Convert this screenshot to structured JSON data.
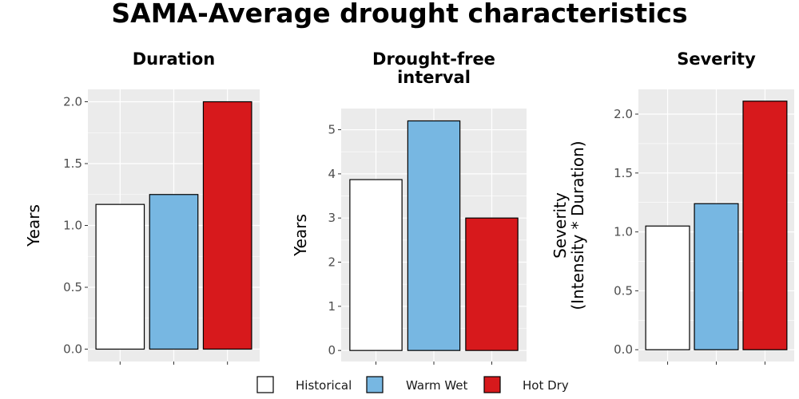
{
  "title": "SAMA-Average drought characteristics",
  "legend": {
    "entries": [
      {
        "label": "Historical",
        "color": "#ffffff"
      },
      {
        "label": "Warm Wet",
        "color": "#77b7e2"
      },
      {
        "label": "Hot Dry",
        "color": "#d7191c"
      }
    ]
  },
  "chart_data": [
    {
      "type": "bar",
      "title": "Duration",
      "title_lines": [
        "Duration"
      ],
      "ylabel": "Years",
      "ylabel_lines": [
        "Years"
      ],
      "categories": [
        "Historical",
        "Warm Wet",
        "Hot Dry"
      ],
      "values": [
        1.17,
        1.25,
        2.0
      ],
      "ylim": [
        -0.1,
        2.1
      ],
      "yticks": [
        0,
        0.5,
        1,
        1.5,
        2
      ],
      "ytick_labels": [
        "0.0",
        "0.5",
        "1.0",
        "1.5",
        "2.0"
      ],
      "grid": true
    },
    {
      "type": "bar",
      "title": "Drought-free interval",
      "title_lines": [
        "Drought-free",
        "interval"
      ],
      "ylabel": "Years",
      "ylabel_lines": [
        "Years"
      ],
      "categories": [
        "Historical",
        "Warm Wet",
        "Hot Dry"
      ],
      "values": [
        3.87,
        5.2,
        3.0
      ],
      "ylim": [
        -0.25,
        5.48
      ],
      "yticks": [
        0,
        1,
        2,
        3,
        4,
        5
      ],
      "ytick_labels": [
        "0",
        "1",
        "2",
        "3",
        "4",
        "5"
      ],
      "grid": true
    },
    {
      "type": "bar",
      "title": "Severity",
      "title_lines": [
        "Severity"
      ],
      "ylabel": "Severity (Intensity * Duration)",
      "ylabel_lines": [
        "Severity",
        "(Intensity * Duration)"
      ],
      "categories": [
        "Historical",
        "Warm Wet",
        "Hot Dry"
      ],
      "values": [
        1.05,
        1.24,
        2.11
      ],
      "ylim": [
        -0.1,
        2.21
      ],
      "yticks": [
        0,
        0.5,
        1,
        1.5,
        2
      ],
      "ytick_labels": [
        "0.0",
        "0.5",
        "1.0",
        "1.5",
        "2.0"
      ],
      "grid": true
    }
  ]
}
